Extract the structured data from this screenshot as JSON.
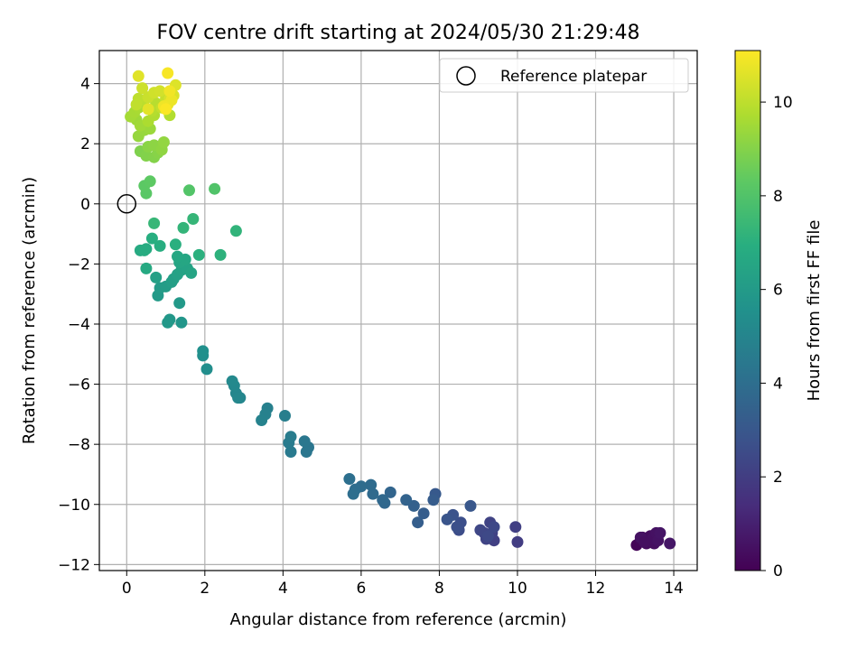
{
  "chart_data": {
    "type": "scatter",
    "title": "FOV centre drift starting at 2024/05/30 21:29:48",
    "xlabel": "Angular distance from reference (arcmin)",
    "ylabel": "Rotation from reference (arcmin)",
    "xlim": [
      -0.7,
      14.6
    ],
    "ylim": [
      -12.2,
      5.1
    ],
    "xticks": [
      0,
      2,
      4,
      6,
      8,
      10,
      12,
      14
    ],
    "yticks": [
      -12,
      -10,
      -8,
      -6,
      -4,
      -2,
      0,
      2,
      4
    ],
    "grid": true,
    "legend": {
      "placement": "top-right",
      "entries": [
        "Reference platepar"
      ]
    },
    "reference_point": {
      "x": 0,
      "y": 0,
      "label": "Reference platepar"
    },
    "colorbar": {
      "label": "Hours from first FF file",
      "colormap": "viridis",
      "range": [
        0,
        11.1
      ],
      "ticks": [
        0,
        2,
        4,
        6,
        8,
        10
      ]
    },
    "points": [
      [
        13.05,
        -11.35,
        0.1
      ],
      [
        13.15,
        -11.2,
        0.15
      ],
      [
        13.2,
        -11.1,
        0.2
      ],
      [
        13.3,
        -11.3,
        0.25
      ],
      [
        13.35,
        -11.15,
        0.3
      ],
      [
        13.4,
        -11.05,
        0.35
      ],
      [
        13.5,
        -11.3,
        0.4
      ],
      [
        13.45,
        -11.15,
        0.45
      ],
      [
        13.55,
        -10.95,
        0.5
      ],
      [
        13.6,
        -11.2,
        0.55
      ],
      [
        13.65,
        -10.95,
        0.6
      ],
      [
        13.9,
        -11.3,
        0.65
      ],
      [
        13.15,
        -11.1,
        0.5
      ],
      [
        13.25,
        -11.25,
        0.4
      ],
      [
        10.0,
        -11.25,
        2.0
      ],
      [
        9.95,
        -10.75,
        2.05
      ],
      [
        9.4,
        -11.2,
        2.1
      ],
      [
        9.35,
        -10.95,
        2.15
      ],
      [
        9.3,
        -10.6,
        2.2
      ],
      [
        9.2,
        -11.15,
        2.25
      ],
      [
        9.15,
        -10.95,
        2.3
      ],
      [
        9.05,
        -10.85,
        2.35
      ],
      [
        9.4,
        -10.75,
        2.4
      ],
      [
        9.25,
        -11.05,
        2.45
      ],
      [
        8.5,
        -10.85,
        2.6
      ],
      [
        8.55,
        -10.6,
        2.65
      ],
      [
        8.45,
        -10.75,
        2.7
      ],
      [
        8.35,
        -10.35,
        2.8
      ],
      [
        8.2,
        -10.5,
        2.9
      ],
      [
        8.8,
        -10.05,
        3.0
      ],
      [
        7.9,
        -9.65,
        3.1
      ],
      [
        7.85,
        -9.85,
        3.2
      ],
      [
        7.6,
        -10.3,
        3.25
      ],
      [
        7.45,
        -10.6,
        3.3
      ],
      [
        7.35,
        -10.05,
        3.4
      ],
      [
        7.15,
        -9.85,
        3.5
      ],
      [
        6.75,
        -9.6,
        3.6
      ],
      [
        6.6,
        -9.95,
        3.7
      ],
      [
        6.55,
        -9.85,
        3.75
      ],
      [
        6.3,
        -9.65,
        3.8
      ],
      [
        6.25,
        -9.35,
        3.85
      ],
      [
        6.0,
        -9.4,
        3.9
      ],
      [
        5.85,
        -9.5,
        3.95
      ],
      [
        5.8,
        -9.65,
        4.0
      ],
      [
        5.7,
        -9.15,
        4.05
      ],
      [
        4.65,
        -8.1,
        4.3
      ],
      [
        4.6,
        -8.25,
        4.35
      ],
      [
        4.55,
        -7.9,
        4.4
      ],
      [
        4.2,
        -8.25,
        4.5
      ],
      [
        4.15,
        -7.95,
        4.55
      ],
      [
        4.2,
        -7.75,
        4.6
      ],
      [
        4.05,
        -7.05,
        4.7
      ],
      [
        3.6,
        -6.8,
        4.8
      ],
      [
        3.55,
        -7.0,
        4.85
      ],
      [
        3.45,
        -7.2,
        4.9
      ],
      [
        2.9,
        -6.45,
        5.0
      ],
      [
        2.8,
        -6.3,
        5.05
      ],
      [
        2.85,
        -6.45,
        5.1
      ],
      [
        2.75,
        -6.05,
        5.15
      ],
      [
        2.7,
        -5.9,
        5.2
      ],
      [
        2.05,
        -5.5,
        5.4
      ],
      [
        1.95,
        -5.05,
        5.45
      ],
      [
        1.95,
        -4.9,
        5.5
      ],
      [
        1.4,
        -3.95,
        5.8
      ],
      [
        1.1,
        -3.85,
        5.85
      ],
      [
        1.05,
        -3.95,
        5.9
      ],
      [
        1.35,
        -3.3,
        5.95
      ],
      [
        0.8,
        -3.05,
        6.0
      ],
      [
        0.85,
        -2.8,
        6.05
      ],
      [
        1.0,
        -2.75,
        6.1
      ],
      [
        1.15,
        -2.6,
        6.15
      ],
      [
        1.2,
        -2.5,
        6.2
      ],
      [
        0.75,
        -2.45,
        6.25
      ],
      [
        1.3,
        -2.35,
        6.3
      ],
      [
        1.4,
        -2.2,
        6.35
      ],
      [
        1.55,
        -2.15,
        6.4
      ],
      [
        1.65,
        -2.3,
        6.45
      ],
      [
        1.35,
        -1.95,
        6.5
      ],
      [
        1.5,
        -1.85,
        6.55
      ],
      [
        1.3,
        -1.75,
        6.6
      ],
      [
        0.5,
        -2.15,
        6.7
      ],
      [
        0.35,
        -1.55,
        6.75
      ],
      [
        0.5,
        -1.5,
        6.8
      ],
      [
        0.45,
        -1.55,
        6.85
      ],
      [
        0.85,
        -1.4,
        6.9
      ],
      [
        0.65,
        -1.15,
        6.95
      ],
      [
        1.25,
        -1.35,
        7.0
      ],
      [
        1.85,
        -1.7,
        7.05
      ],
      [
        2.4,
        -1.7,
        7.1
      ],
      [
        2.8,
        -0.9,
        7.2
      ],
      [
        1.45,
        -0.8,
        7.25
      ],
      [
        1.7,
        -0.5,
        7.3
      ],
      [
        0.7,
        -0.65,
        7.35
      ],
      [
        2.25,
        0.5,
        8.0
      ],
      [
        1.6,
        0.45,
        8.05
      ],
      [
        0.5,
        0.35,
        8.2
      ],
      [
        0.45,
        0.6,
        8.25
      ],
      [
        0.6,
        0.75,
        8.3
      ],
      [
        0.35,
        1.75,
        8.9
      ],
      [
        0.5,
        1.6,
        8.95
      ],
      [
        0.7,
        1.55,
        9.0
      ],
      [
        0.8,
        1.7,
        9.05
      ],
      [
        0.55,
        1.9,
        9.1
      ],
      [
        0.7,
        1.95,
        9.15
      ],
      [
        0.9,
        1.8,
        9.2
      ],
      [
        0.95,
        2.05,
        9.25
      ],
      [
        0.3,
        2.25,
        9.3
      ],
      [
        0.45,
        2.45,
        9.35
      ],
      [
        0.6,
        2.5,
        9.4
      ],
      [
        0.25,
        2.8,
        9.45
      ],
      [
        0.35,
        2.6,
        9.5
      ],
      [
        0.1,
        2.9,
        9.55
      ],
      [
        0.2,
        3.05,
        9.6
      ],
      [
        0.3,
        3.2,
        9.65
      ],
      [
        0.55,
        2.75,
        9.7
      ],
      [
        0.7,
        2.95,
        9.75
      ],
      [
        1.1,
        2.95,
        9.8
      ],
      [
        0.65,
        3.1,
        9.85
      ],
      [
        0.75,
        3.35,
        9.9
      ],
      [
        0.45,
        3.45,
        9.95
      ],
      [
        0.3,
        3.5,
        10.0
      ],
      [
        0.25,
        3.3,
        10.05
      ],
      [
        0.9,
        3.2,
        10.1
      ],
      [
        1.0,
        3.5,
        10.15
      ],
      [
        0.55,
        3.55,
        10.2
      ],
      [
        0.4,
        3.85,
        10.25
      ],
      [
        0.7,
        3.7,
        10.3
      ],
      [
        0.85,
        3.75,
        10.35
      ],
      [
        1.1,
        3.5,
        10.4
      ],
      [
        1.2,
        3.6,
        10.5
      ],
      [
        1.25,
        3.95,
        10.55
      ],
      [
        0.3,
        4.25,
        10.6
      ],
      [
        0.55,
        3.15,
        10.65
      ],
      [
        1.05,
        3.3,
        10.7
      ],
      [
        1.15,
        3.45,
        10.8
      ],
      [
        0.95,
        3.25,
        10.85
      ],
      [
        1.1,
        3.75,
        10.9
      ],
      [
        1.05,
        4.35,
        11.0
      ],
      [
        1.0,
        3.15,
        11.05
      ]
    ]
  }
}
